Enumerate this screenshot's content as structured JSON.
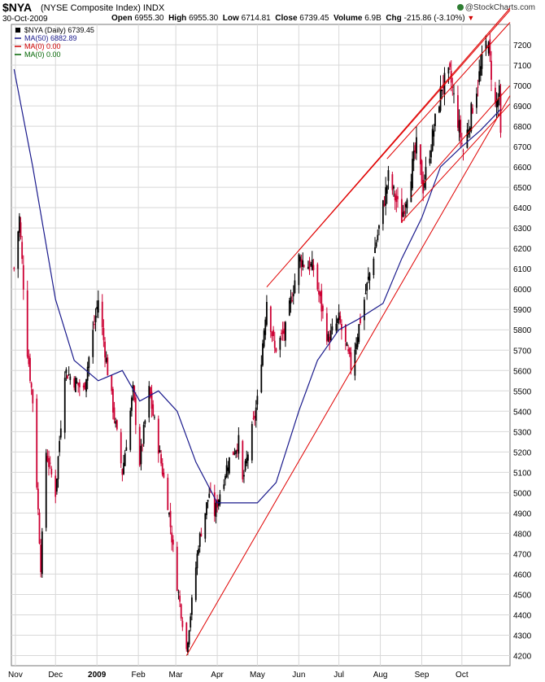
{
  "header": {
    "symbol": "$NYA",
    "name": "(NYSE Composite Index) INDX",
    "date": "30-Oct-2009",
    "open_label": "Open",
    "open": "6955.30",
    "high_label": "High",
    "high": "6955.30",
    "low_label": "Low",
    "low": "6714.81",
    "close_label": "Close",
    "close": "6739.45",
    "volume_label": "Volume",
    "volume": "6.9B",
    "chg_label": "Chg",
    "chg": "-215.86 (-3.10%)",
    "brand": "@StockCharts.com"
  },
  "legend": [
    {
      "text": "$NYA (Daily) 6739.45",
      "color": "#000000",
      "marker": "candle"
    },
    {
      "text": "MA(50) 6882.89",
      "color": "#1a1a8c",
      "marker": "line"
    },
    {
      "text": "MA(0) 0.00",
      "color": "#d00000",
      "marker": "line"
    },
    {
      "text": "MA(0) 0.00",
      "color": "#006400",
      "marker": "line"
    }
  ],
  "colors": {
    "up": "#000000",
    "down": "#cc0033",
    "ma": "#1a1a8c",
    "trend": "#e00000",
    "grid": "#d8d8d8"
  },
  "chart_data": {
    "type": "candlestick",
    "title": "$NYA (NYSE Composite Index) INDX",
    "ylim": [
      4150,
      7300
    ],
    "yticks": [
      4200,
      4300,
      4400,
      4500,
      4600,
      4700,
      4800,
      4900,
      5000,
      5100,
      5200,
      5300,
      5400,
      5500,
      5600,
      5700,
      5800,
      5900,
      6000,
      6100,
      6200,
      6300,
      6400,
      6500,
      6600,
      6700,
      6800,
      6900,
      7000,
      7100,
      7200
    ],
    "x_tick_labels": [
      "Nov",
      "Dec",
      "2009",
      "Feb",
      "Mar",
      "Apr",
      "May",
      "Jun",
      "Jul",
      "Aug",
      "Sep",
      "Oct"
    ],
    "close_anchors": [
      {
        "date": "2008-10-31",
        "close": 6100
      },
      {
        "date": "2008-11-04",
        "close": 6350
      },
      {
        "date": "2008-11-10",
        "close": 5700
      },
      {
        "date": "2008-11-14",
        "close": 5450
      },
      {
        "date": "2008-11-20",
        "close": 4640
      },
      {
        "date": "2008-11-24",
        "close": 5200
      },
      {
        "date": "2008-12-01",
        "close": 5000
      },
      {
        "date": "2008-12-08",
        "close": 5600
      },
      {
        "date": "2008-12-15",
        "close": 5550
      },
      {
        "date": "2008-12-22",
        "close": 5500
      },
      {
        "date": "2009-01-02",
        "close": 5950
      },
      {
        "date": "2009-01-09",
        "close": 5600
      },
      {
        "date": "2009-01-20",
        "close": 5100
      },
      {
        "date": "2009-01-28",
        "close": 5500
      },
      {
        "date": "2009-02-02",
        "close": 5150
      },
      {
        "date": "2009-02-09",
        "close": 5500
      },
      {
        "date": "2009-02-23",
        "close": 4950
      },
      {
        "date": "2009-03-02",
        "close": 4550
      },
      {
        "date": "2009-03-09",
        "close": 4230
      },
      {
        "date": "2009-03-18",
        "close": 4750
      },
      {
        "date": "2009-03-26",
        "close": 5000
      },
      {
        "date": "2009-03-30",
        "close": 4900
      },
      {
        "date": "2009-04-09",
        "close": 5150
      },
      {
        "date": "2009-04-17",
        "close": 5250
      },
      {
        "date": "2009-04-20",
        "close": 5050
      },
      {
        "date": "2009-05-01",
        "close": 5450
      },
      {
        "date": "2009-05-08",
        "close": 5950
      },
      {
        "date": "2009-05-14",
        "close": 5700
      },
      {
        "date": "2009-05-22",
        "close": 5800
      },
      {
        "date": "2009-06-01",
        "close": 6150
      },
      {
        "date": "2009-06-12",
        "close": 6100
      },
      {
        "date": "2009-06-23",
        "close": 5750
      },
      {
        "date": "2009-07-01",
        "close": 5850
      },
      {
        "date": "2009-07-10",
        "close": 5620
      },
      {
        "date": "2009-07-20",
        "close": 5950
      },
      {
        "date": "2009-07-31",
        "close": 6300
      },
      {
        "date": "2009-08-07",
        "close": 6550
      },
      {
        "date": "2009-08-17",
        "close": 6350
      },
      {
        "date": "2009-08-28",
        "close": 6700
      },
      {
        "date": "2009-09-02",
        "close": 6500
      },
      {
        "date": "2009-09-16",
        "close": 7000
      },
      {
        "date": "2009-09-22",
        "close": 7050
      },
      {
        "date": "2009-10-02",
        "close": 6680
      },
      {
        "date": "2009-10-09",
        "close": 6900
      },
      {
        "date": "2009-10-20",
        "close": 7230
      },
      {
        "date": "2009-10-26",
        "close": 6900
      },
      {
        "date": "2009-10-29",
        "close": 6955
      },
      {
        "date": "2009-10-30",
        "close": 6739
      }
    ],
    "ma50_anchors": [
      {
        "date": "2008-10-31",
        "value": 7080
      },
      {
        "date": "2008-11-14",
        "value": 6600
      },
      {
        "date": "2008-12-01",
        "value": 5950
      },
      {
        "date": "2008-12-15",
        "value": 5650
      },
      {
        "date": "2009-01-02",
        "value": 5550
      },
      {
        "date": "2009-01-20",
        "value": 5600
      },
      {
        "date": "2009-02-02",
        "value": 5450
      },
      {
        "date": "2009-02-16",
        "value": 5500
      },
      {
        "date": "2009-03-02",
        "value": 5400
      },
      {
        "date": "2009-03-16",
        "value": 5150
      },
      {
        "date": "2009-04-01",
        "value": 4950
      },
      {
        "date": "2009-04-15",
        "value": 4950
      },
      {
        "date": "2009-05-01",
        "value": 4950
      },
      {
        "date": "2009-05-15",
        "value": 5050
      },
      {
        "date": "2009-06-01",
        "value": 5400
      },
      {
        "date": "2009-06-15",
        "value": 5650
      },
      {
        "date": "2009-07-01",
        "value": 5800
      },
      {
        "date": "2009-07-15",
        "value": 5850
      },
      {
        "date": "2009-08-03",
        "value": 5930
      },
      {
        "date": "2009-08-17",
        "value": 6150
      },
      {
        "date": "2009-09-01",
        "value": 6350
      },
      {
        "date": "2009-09-15",
        "value": 6600
      },
      {
        "date": "2009-10-01",
        "value": 6700
      },
      {
        "date": "2009-10-15",
        "value": 6780
      },
      {
        "date": "2009-10-30",
        "value": 6883
      }
    ],
    "trendlines": [
      {
        "name": "support",
        "from": {
          "date": "2009-03-09",
          "value": 4200
        },
        "to": {
          "date": "2009-11-06",
          "value": 6950
        }
      },
      {
        "name": "channel-upper",
        "from": {
          "date": "2009-05-08",
          "value": 6010
        },
        "to": {
          "date": "2009-11-06",
          "value": 7370
        }
      },
      {
        "name": "channel-upper-2",
        "from": {
          "date": "2009-06-01",
          "value": 6190
        },
        "to": {
          "date": "2009-11-06",
          "value": 7380
        }
      },
      {
        "name": "channel-upper-3",
        "from": {
          "date": "2009-08-06",
          "value": 6640
        },
        "to": {
          "date": "2009-11-06",
          "value": 7310
        }
      },
      {
        "name": "channel-lower",
        "from": {
          "date": "2009-08-17",
          "value": 6330
        },
        "to": {
          "date": "2009-11-06",
          "value": 6910
        }
      },
      {
        "name": "channel-lower-2",
        "from": {
          "date": "2009-08-24",
          "value": 6450
        },
        "to": {
          "date": "2009-11-06",
          "value": 7000
        }
      }
    ]
  }
}
